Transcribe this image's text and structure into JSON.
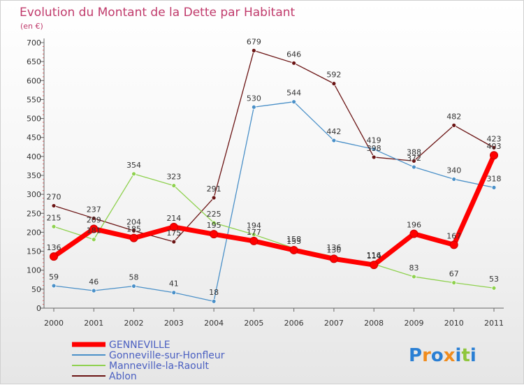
{
  "chart_data": {
    "type": "line",
    "title": "Evolution du Montant de la Dette par Habitant",
    "subtitle": "(en €)",
    "x": [
      "2000",
      "2001",
      "2002",
      "2003",
      "2004",
      "2005",
      "2006",
      "2007",
      "2008",
      "2009",
      "2010",
      "2011"
    ],
    "ylim": [
      0,
      700
    ],
    "yticks": [
      0,
      50,
      100,
      150,
      200,
      250,
      300,
      350,
      400,
      450,
      500,
      550,
      600,
      650,
      700
    ],
    "grid": false,
    "legend_position": "bottom-left",
    "series": [
      {
        "name": "GENNEVILLE",
        "color": "#ff0000",
        "values": [
          136,
          209,
          185,
          214,
          195,
          177,
          153,
          130,
          114,
          196,
          167,
          403
        ]
      },
      {
        "name": "Gonneville-sur-Honfleur",
        "color": "#4a90c8",
        "values": [
          59,
          46,
          58,
          41,
          18,
          530,
          544,
          442,
          419,
          372,
          340,
          318
        ]
      },
      {
        "name": "Manneville-la-Raoult",
        "color": "#8fd14f",
        "values": [
          215,
          181,
          354,
          323,
          225,
          194,
          158,
          136,
          116,
          83,
          67,
          53
        ]
      },
      {
        "name": "Ablon",
        "color": "#6b1414",
        "values": [
          270,
          237,
          204,
          175,
          291,
          679,
          646,
          592,
          398,
          388,
          482,
          423
        ]
      }
    ]
  },
  "logo": {
    "text": "Proxiti",
    "letter_colors": [
      "#2a7fd4",
      "#f08c1e",
      "#2a7fd4",
      "#f08c1e",
      "#2a7fd4",
      "#8fc63c",
      "#2a7fd4"
    ]
  }
}
